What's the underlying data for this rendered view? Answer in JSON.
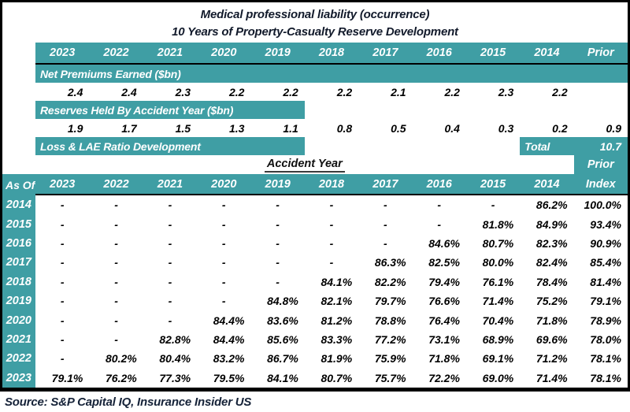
{
  "title": "Medical professional liability (occurrence)",
  "subtitle": "10 Years of Property-Casualty Reserve Development",
  "source": "Source: S&P Capital IQ, Insurance Insider US",
  "colors": {
    "teal": "#3F9EA4",
    "title_text": "#121A2B",
    "source_text": "#152238",
    "border": "#000000"
  },
  "chart_data": {
    "type": "table",
    "top_year_columns": [
      "2023",
      "2022",
      "2021",
      "2020",
      "2019",
      "2018",
      "2017",
      "2016",
      "2015",
      "2014",
      "Prior"
    ],
    "net_premiums_earned_bn": {
      "label": "Net Premiums Earned ($bn)",
      "values": [
        "2.4",
        "2.4",
        "2.3",
        "2.2",
        "2.2",
        "2.2",
        "2.1",
        "2.2",
        "2.3",
        "2.2",
        ""
      ]
    },
    "reserves_held_bn": {
      "label": "Reserves Held By Accident Year ($bn)",
      "values": [
        "1.9",
        "1.7",
        "1.5",
        "1.3",
        "1.1",
        "0.8",
        "0.5",
        "0.4",
        "0.3",
        "0.2",
        "0.9"
      ]
    },
    "loss_lae_development": {
      "label": "Loss & LAE Ratio Development",
      "total_label": "Total",
      "total_value": "10.7"
    },
    "matrix": {
      "header_group": "Accident Year",
      "prior_header": "Prior",
      "as_of_header": "As Of",
      "index_header": "Index",
      "year_columns": [
        "2023",
        "2022",
        "2021",
        "2020",
        "2019",
        "2018",
        "2017",
        "2016",
        "2015",
        "2014"
      ],
      "rows": [
        {
          "as_of": "2014",
          "values": [
            "-",
            "-",
            "-",
            "-",
            "-",
            "-",
            "-",
            "-",
            "-",
            "86.2%"
          ],
          "index": "100.0%"
        },
        {
          "as_of": "2015",
          "values": [
            "-",
            "-",
            "-",
            "-",
            "-",
            "-",
            "-",
            "-",
            "81.8%",
            "84.9%"
          ],
          "index": "93.4%"
        },
        {
          "as_of": "2016",
          "values": [
            "-",
            "-",
            "-",
            "-",
            "-",
            "-",
            "-",
            "84.6%",
            "80.7%",
            "82.3%"
          ],
          "index": "90.9%"
        },
        {
          "as_of": "2017",
          "values": [
            "-",
            "-",
            "-",
            "-",
            "-",
            "-",
            "86.3%",
            "82.5%",
            "80.0%",
            "82.4%"
          ],
          "index": "85.4%"
        },
        {
          "as_of": "2018",
          "values": [
            "-",
            "-",
            "-",
            "-",
            "-",
            "84.1%",
            "82.2%",
            "79.4%",
            "76.1%",
            "78.4%"
          ],
          "index": "81.4%"
        },
        {
          "as_of": "2019",
          "values": [
            "-",
            "-",
            "-",
            "-",
            "84.8%",
            "82.1%",
            "79.7%",
            "76.6%",
            "71.4%",
            "75.2%"
          ],
          "index": "79.1%"
        },
        {
          "as_of": "2020",
          "values": [
            "-",
            "-",
            "-",
            "84.4%",
            "83.6%",
            "81.2%",
            "78.8%",
            "76.4%",
            "70.4%",
            "71.8%"
          ],
          "index": "78.9%"
        },
        {
          "as_of": "2021",
          "values": [
            "-",
            "-",
            "82.8%",
            "84.4%",
            "85.6%",
            "83.3%",
            "77.2%",
            "73.1%",
            "68.9%",
            "69.6%"
          ],
          "index": "78.0%"
        },
        {
          "as_of": "2022",
          "values": [
            "-",
            "80.2%",
            "80.4%",
            "83.2%",
            "86.7%",
            "81.9%",
            "75.9%",
            "71.8%",
            "69.1%",
            "71.2%"
          ],
          "index": "78.1%"
        },
        {
          "as_of": "2023",
          "values": [
            "79.1%",
            "76.2%",
            "77.3%",
            "79.5%",
            "84.1%",
            "80.7%",
            "75.7%",
            "72.2%",
            "69.0%",
            "71.4%"
          ],
          "index": "78.1%"
        }
      ]
    }
  }
}
